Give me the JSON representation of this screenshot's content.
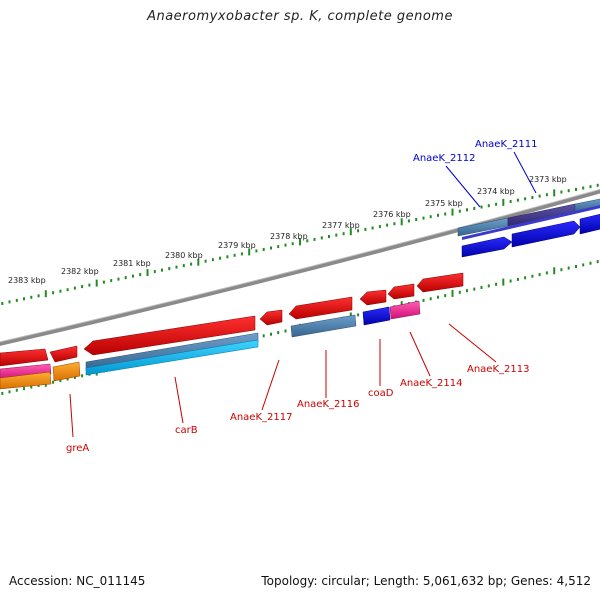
{
  "title": "Anaeromyxobacter sp. K, complete genome",
  "footer": {
    "accession": "Accession: NC_011145",
    "summary": "Topology: circular; Length: 5,061,632 bp; Genes: 4,512"
  },
  "scale_labels": [
    "2383 kbp",
    "2382 kbp",
    "2381 kbp",
    "2380 kbp",
    "2379 kbp",
    "2378 kbp",
    "2377 kbp",
    "2376 kbp",
    "2375 kbp",
    "2374 kbp",
    "2373 kbp"
  ],
  "gene_labels": {
    "anaek_2111": "AnaeK_2111",
    "anaek_2112": "AnaeK_2112",
    "grea": "greA",
    "carb": "carB",
    "anaek_2117": "AnaeK_2117",
    "anaek_2116": "AnaeK_2116",
    "coad": "coaD",
    "anaek_2114": "AnaeK_2114",
    "anaek_2113": "AnaeK_2113"
  },
  "colors": {
    "backbone": "#808080",
    "tick": "#228b22",
    "gene": "#ff0000",
    "label_red": "#cc0000",
    "label_blue": "#0000cc",
    "blue": "#0000ee",
    "steelblue": "#4682b4",
    "purple": "#483d8b",
    "cyan": "#00bfff",
    "magenta": "#ff1493",
    "orange": "#ff8c00"
  }
}
